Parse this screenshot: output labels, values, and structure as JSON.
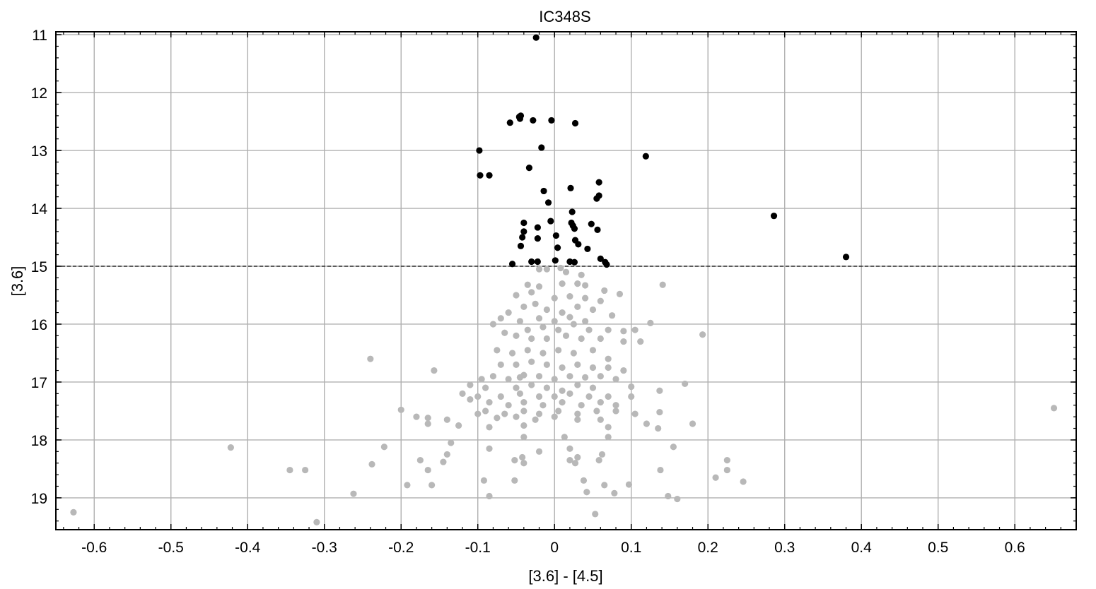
{
  "chart_data": {
    "type": "scatter",
    "title": "IC348S",
    "xlabel": "[3.6] - [4.5]",
    "ylabel": "[3.6]",
    "xlim": [
      -0.65,
      0.68
    ],
    "ylim": [
      19.55,
      10.95
    ],
    "y_inverted": true,
    "grid": true,
    "x_ticks": [
      -0.6,
      -0.5,
      -0.4,
      -0.3,
      -0.2,
      -0.1,
      0,
      0.1,
      0.2,
      0.3,
      0.4,
      0.5,
      0.6
    ],
    "x_tick_labels": [
      "-0.6",
      "-0.5",
      "-0.4",
      "-0.3",
      "-0.2",
      "-0.1",
      "0",
      "0.1",
      "0.2",
      "0.3",
      "0.4",
      "0.5",
      "0.6"
    ],
    "y_ticks": [
      11,
      12,
      13,
      14,
      15,
      16,
      17,
      18,
      19
    ],
    "y_tick_labels": [
      "11",
      "12",
      "13",
      "14",
      "15",
      "16",
      "17",
      "18",
      "19"
    ],
    "cutoff_line": {
      "y": 15.0,
      "style": "dashed"
    },
    "colors": {
      "bright": "#000000",
      "faint": "#b8b8b8",
      "grid": "#b0b0b0"
    },
    "series": [
      {
        "color": "#000000",
        "points": [
          [
            -0.024,
            11.05
          ],
          [
            -0.058,
            12.52
          ],
          [
            -0.045,
            12.45
          ],
          [
            -0.046,
            12.42
          ],
          [
            -0.044,
            12.4
          ],
          [
            -0.028,
            12.48
          ],
          [
            -0.004,
            12.48
          ],
          [
            0.027,
            12.53
          ],
          [
            -0.098,
            13.0
          ],
          [
            -0.017,
            12.95
          ],
          [
            0.119,
            13.1
          ],
          [
            -0.097,
            13.43
          ],
          [
            -0.085,
            13.43
          ],
          [
            -0.033,
            13.3
          ],
          [
            0.058,
            13.55
          ],
          [
            -0.014,
            13.7
          ],
          [
            0.021,
            13.65
          ],
          [
            0.058,
            13.78
          ],
          [
            0.055,
            13.83
          ],
          [
            -0.008,
            13.9
          ],
          [
            0.023,
            14.06
          ],
          [
            0.286,
            14.13
          ],
          [
            -0.005,
            14.22
          ],
          [
            0.022,
            14.25
          ],
          [
            0.048,
            14.27
          ],
          [
            -0.04,
            14.25
          ],
          [
            -0.022,
            14.33
          ],
          [
            0.026,
            14.35
          ],
          [
            0.056,
            14.37
          ],
          [
            -0.04,
            14.4
          ],
          [
            0.024,
            14.3
          ],
          [
            0.002,
            14.47
          ],
          [
            -0.042,
            14.5
          ],
          [
            -0.022,
            14.52
          ],
          [
            0.027,
            14.55
          ],
          [
            0.031,
            14.62
          ],
          [
            -0.044,
            14.65
          ],
          [
            0.043,
            14.7
          ],
          [
            0.004,
            14.68
          ],
          [
            0.38,
            14.84
          ],
          [
            0.06,
            14.87
          ],
          [
            -0.03,
            14.92
          ],
          [
            -0.022,
            14.92
          ],
          [
            0.001,
            14.9
          ],
          [
            0.02,
            14.92
          ],
          [
            0.026,
            14.93
          ],
          [
            0.066,
            14.93
          ],
          [
            -0.055,
            14.96
          ],
          [
            0.068,
            14.97
          ]
        ]
      },
      {
        "color": "#b8b8b8",
        "points": [
          [
            -0.02,
            15.05
          ],
          [
            -0.01,
            15.05
          ],
          [
            0.008,
            15.03
          ],
          [
            0.015,
            15.1
          ],
          [
            0.035,
            15.15
          ],
          [
            -0.035,
            15.32
          ],
          [
            -0.02,
            15.35
          ],
          [
            0.01,
            15.3
          ],
          [
            0.03,
            15.3
          ],
          [
            0.04,
            15.33
          ],
          [
            0.065,
            15.42
          ],
          [
            0.085,
            15.48
          ],
          [
            0.141,
            15.32
          ],
          [
            -0.05,
            15.5
          ],
          [
            -0.03,
            15.45
          ],
          [
            0.0,
            15.55
          ],
          [
            0.02,
            15.52
          ],
          [
            0.04,
            15.55
          ],
          [
            0.06,
            15.6
          ],
          [
            -0.06,
            15.8
          ],
          [
            -0.04,
            15.7
          ],
          [
            -0.025,
            15.65
          ],
          [
            -0.01,
            15.75
          ],
          [
            0.01,
            15.8
          ],
          [
            0.03,
            15.7
          ],
          [
            0.05,
            15.75
          ],
          [
            0.075,
            15.85
          ],
          [
            -0.07,
            15.9
          ],
          [
            -0.045,
            15.95
          ],
          [
            -0.02,
            15.9
          ],
          [
            0.0,
            15.95
          ],
          [
            0.02,
            15.88
          ],
          [
            0.04,
            15.95
          ],
          [
            -0.08,
            16.0
          ],
          [
            -0.035,
            16.1
          ],
          [
            -0.015,
            16.05
          ],
          [
            0.005,
            16.1
          ],
          [
            0.025,
            16.0
          ],
          [
            0.045,
            16.1
          ],
          [
            0.07,
            16.1
          ],
          [
            0.09,
            16.12
          ],
          [
            0.105,
            16.1
          ],
          [
            0.125,
            15.98
          ],
          [
            0.193,
            16.18
          ],
          [
            -0.065,
            16.15
          ],
          [
            -0.05,
            16.2
          ],
          [
            -0.03,
            16.25
          ],
          [
            -0.01,
            16.25
          ],
          [
            0.015,
            16.2
          ],
          [
            0.035,
            16.25
          ],
          [
            0.06,
            16.25
          ],
          [
            0.09,
            16.3
          ],
          [
            0.112,
            16.3
          ],
          [
            -0.24,
            16.6
          ],
          [
            -0.075,
            16.45
          ],
          [
            -0.055,
            16.5
          ],
          [
            -0.035,
            16.45
          ],
          [
            -0.015,
            16.5
          ],
          [
            0.005,
            16.45
          ],
          [
            0.025,
            16.5
          ],
          [
            0.05,
            16.45
          ],
          [
            0.07,
            16.6
          ],
          [
            -0.07,
            16.7
          ],
          [
            -0.05,
            16.7
          ],
          [
            -0.03,
            16.65
          ],
          [
            -0.01,
            16.7
          ],
          [
            0.01,
            16.75
          ],
          [
            0.03,
            16.7
          ],
          [
            0.05,
            16.75
          ],
          [
            0.07,
            16.75
          ],
          [
            0.09,
            16.8
          ],
          [
            -0.157,
            16.8
          ],
          [
            -0.095,
            16.95
          ],
          [
            -0.08,
            16.9
          ],
          [
            -0.06,
            16.95
          ],
          [
            -0.045,
            16.92
          ],
          [
            -0.04,
            16.88
          ],
          [
            -0.02,
            16.9
          ],
          [
            0.0,
            16.95
          ],
          [
            0.02,
            16.9
          ],
          [
            0.04,
            16.92
          ],
          [
            0.06,
            16.9
          ],
          [
            0.08,
            16.95
          ],
          [
            -0.11,
            17.05
          ],
          [
            -0.09,
            17.1
          ],
          [
            -0.05,
            17.1
          ],
          [
            -0.03,
            17.05
          ],
          [
            -0.01,
            17.1
          ],
          [
            0.01,
            17.15
          ],
          [
            0.03,
            17.05
          ],
          [
            0.05,
            17.1
          ],
          [
            0.1,
            17.08
          ],
          [
            0.17,
            17.03
          ],
          [
            -0.12,
            17.2
          ],
          [
            -0.1,
            17.25
          ],
          [
            -0.07,
            17.25
          ],
          [
            -0.045,
            17.2
          ],
          [
            -0.02,
            17.25
          ],
          [
            0.0,
            17.25
          ],
          [
            0.02,
            17.2
          ],
          [
            0.045,
            17.25
          ],
          [
            0.07,
            17.25
          ],
          [
            0.1,
            17.25
          ],
          [
            0.137,
            17.15
          ],
          [
            -0.11,
            17.3
          ],
          [
            -0.085,
            17.35
          ],
          [
            -0.06,
            17.4
          ],
          [
            -0.04,
            17.35
          ],
          [
            -0.015,
            17.4
          ],
          [
            0.01,
            17.35
          ],
          [
            0.035,
            17.4
          ],
          [
            0.06,
            17.35
          ],
          [
            0.08,
            17.4
          ],
          [
            0.651,
            17.45
          ],
          [
            -0.2,
            17.48
          ],
          [
            -0.09,
            17.5
          ],
          [
            -0.065,
            17.55
          ],
          [
            -0.04,
            17.5
          ],
          [
            -0.02,
            17.55
          ],
          [
            0.005,
            17.5
          ],
          [
            0.03,
            17.55
          ],
          [
            0.055,
            17.5
          ],
          [
            0.08,
            17.5
          ],
          [
            0.105,
            17.55
          ],
          [
            0.137,
            17.52
          ],
          [
            -0.18,
            17.6
          ],
          [
            -0.165,
            17.62
          ],
          [
            -0.14,
            17.65
          ],
          [
            -0.1,
            17.55
          ],
          [
            -0.075,
            17.62
          ],
          [
            -0.05,
            17.6
          ],
          [
            -0.025,
            17.65
          ],
          [
            0.0,
            17.6
          ],
          [
            0.03,
            17.65
          ],
          [
            0.06,
            17.65
          ],
          [
            0.12,
            17.72
          ],
          [
            0.18,
            17.72
          ],
          [
            -0.165,
            17.72
          ],
          [
            -0.125,
            17.75
          ],
          [
            -0.085,
            17.78
          ],
          [
            -0.04,
            17.75
          ],
          [
            0.07,
            17.78
          ],
          [
            0.135,
            17.8
          ],
          [
            -0.04,
            17.95
          ],
          [
            0.013,
            17.95
          ],
          [
            0.07,
            17.95
          ],
          [
            -0.135,
            18.05
          ],
          [
            0.155,
            18.12
          ],
          [
            -0.422,
            18.13
          ],
          [
            -0.222,
            18.12
          ],
          [
            -0.085,
            18.15
          ],
          [
            -0.02,
            18.2
          ],
          [
            0.02,
            18.15
          ],
          [
            -0.14,
            18.25
          ],
          [
            -0.042,
            18.3
          ],
          [
            0.03,
            18.3
          ],
          [
            0.062,
            18.25
          ],
          [
            -0.175,
            18.35
          ],
          [
            -0.052,
            18.35
          ],
          [
            0.02,
            18.35
          ],
          [
            0.058,
            18.35
          ],
          [
            0.225,
            18.35
          ],
          [
            -0.145,
            18.38
          ],
          [
            -0.04,
            18.4
          ],
          [
            0.027,
            18.4
          ],
          [
            -0.238,
            18.42
          ],
          [
            -0.345,
            18.52
          ],
          [
            -0.325,
            18.52
          ],
          [
            -0.165,
            18.52
          ],
          [
            0.138,
            18.52
          ],
          [
            0.225,
            18.52
          ],
          [
            0.21,
            18.65
          ],
          [
            -0.092,
            18.7
          ],
          [
            -0.052,
            18.7
          ],
          [
            0.038,
            18.7
          ],
          [
            0.246,
            18.72
          ],
          [
            -0.192,
            18.78
          ],
          [
            -0.16,
            18.78
          ],
          [
            0.065,
            18.78
          ],
          [
            0.097,
            18.77
          ],
          [
            0.042,
            18.9
          ],
          [
            -0.262,
            18.93
          ],
          [
            -0.085,
            18.97
          ],
          [
            0.078,
            18.92
          ],
          [
            0.148,
            18.97
          ],
          [
            0.16,
            19.02
          ],
          [
            -0.627,
            19.25
          ],
          [
            0.053,
            19.28
          ],
          [
            -0.31,
            19.42
          ]
        ]
      }
    ]
  }
}
